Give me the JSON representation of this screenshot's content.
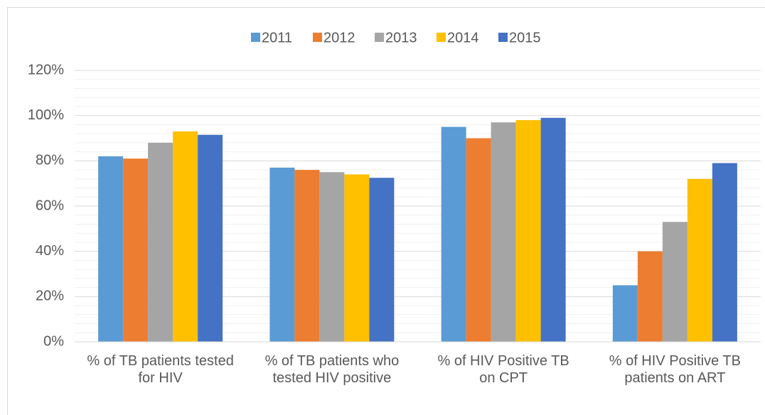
{
  "chart_data": {
    "type": "bar",
    "categories": [
      "% of TB patients tested for  HIV",
      "% of TB patients who tested HIV positive",
      "% of HIV Positive TB on CPT",
      "% of HIV Positive TB patients on ART"
    ],
    "series": [
      {
        "name": "2011",
        "color": "#5b9bd5",
        "values": [
          82,
          77,
          95,
          25
        ]
      },
      {
        "name": "2012",
        "color": "#ed7d31",
        "values": [
          81,
          76,
          90,
          40
        ]
      },
      {
        "name": "2013",
        "color": "#a5a5a5",
        "values": [
          88,
          75,
          97,
          53
        ]
      },
      {
        "name": "2014",
        "color": "#ffc000",
        "values": [
          93,
          74,
          98,
          72
        ]
      },
      {
        "name": "2015",
        "color": "#4472c4",
        "values": [
          91.5,
          72.5,
          99,
          79
        ]
      }
    ],
    "ylim": [
      0,
      120
    ],
    "yticks": [
      {
        "value": 0,
        "label": "0%"
      },
      {
        "value": 20,
        "label": "20%"
      },
      {
        "value": 40,
        "label": "40%"
      },
      {
        "value": 60,
        "label": "60%"
      },
      {
        "value": 80,
        "label": "80%"
      },
      {
        "value": 100,
        "label": "100%"
      },
      {
        "value": 120,
        "label": "120%"
      }
    ],
    "yminorticks": [
      4,
      8,
      12,
      16,
      24,
      28,
      32,
      36,
      44,
      48,
      52,
      56,
      64,
      68,
      72,
      76,
      84,
      88,
      92,
      96,
      104,
      108,
      112,
      116
    ],
    "grid": true,
    "legend": "top"
  }
}
